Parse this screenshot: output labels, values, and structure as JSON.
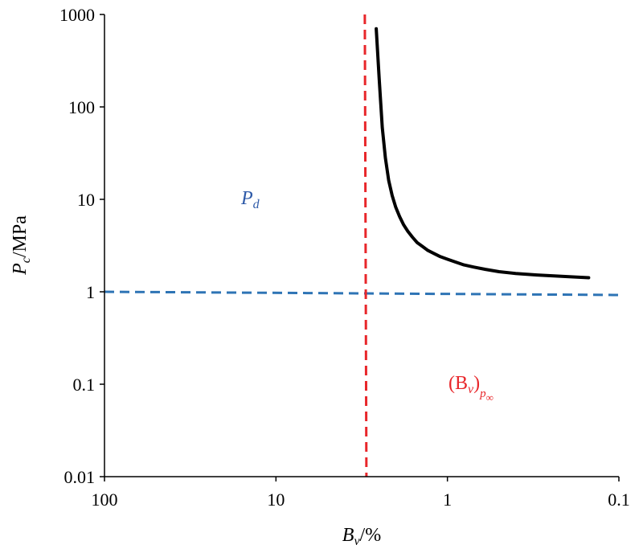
{
  "chart_data": {
    "type": "line",
    "x_scale": "log",
    "x_reversed": true,
    "y_scale": "log",
    "xlim": [
      100,
      0.1
    ],
    "ylim": [
      0.01,
      1000
    ],
    "x_ticks": [
      "100",
      "10",
      "1",
      "0.1"
    ],
    "y_ticks": [
      "1000",
      "100",
      "10",
      "1",
      "0.1",
      "0.01"
    ],
    "xlabel": {
      "main": "B",
      "sub": "v",
      "unit": "/%"
    },
    "ylabel": {
      "main": "P",
      "sub": "c",
      "unit": "/MPa"
    },
    "grid": false,
    "legend": "none",
    "series": [
      {
        "color": "#000000",
        "style": "solid",
        "x": [
          2.6,
          2.5,
          2.4,
          2.3,
          2.2,
          2.1,
          2.0,
          1.9,
          1.8,
          1.7,
          1.6,
          1.5,
          1.4,
          1.3,
          1.2,
          1.1,
          1.0,
          0.9,
          0.8,
          0.7,
          0.6,
          0.5,
          0.4,
          0.3,
          0.2,
          0.15
        ],
        "y": [
          700,
          200,
          60,
          28,
          16,
          11,
          8.2,
          6.5,
          5.3,
          4.5,
          3.9,
          3.4,
          3.1,
          2.8,
          2.6,
          2.4,
          2.25,
          2.1,
          1.95,
          1.85,
          1.75,
          1.65,
          1.58,
          1.52,
          1.46,
          1.42
        ]
      }
    ],
    "reference_lines": [
      {
        "orientation": "horizontal",
        "value": 1,
        "color": "#2e74b5",
        "style": "dashed",
        "label": {
          "main": "P",
          "sub": "d"
        }
      },
      {
        "orientation": "vertical",
        "value": 3.0,
        "color": "#e8262a",
        "style": "dashed",
        "label": {
          "main": "(B",
          "sub1": "v",
          "close": ")",
          "sub2": "p",
          "sub3": "∞"
        }
      }
    ]
  }
}
